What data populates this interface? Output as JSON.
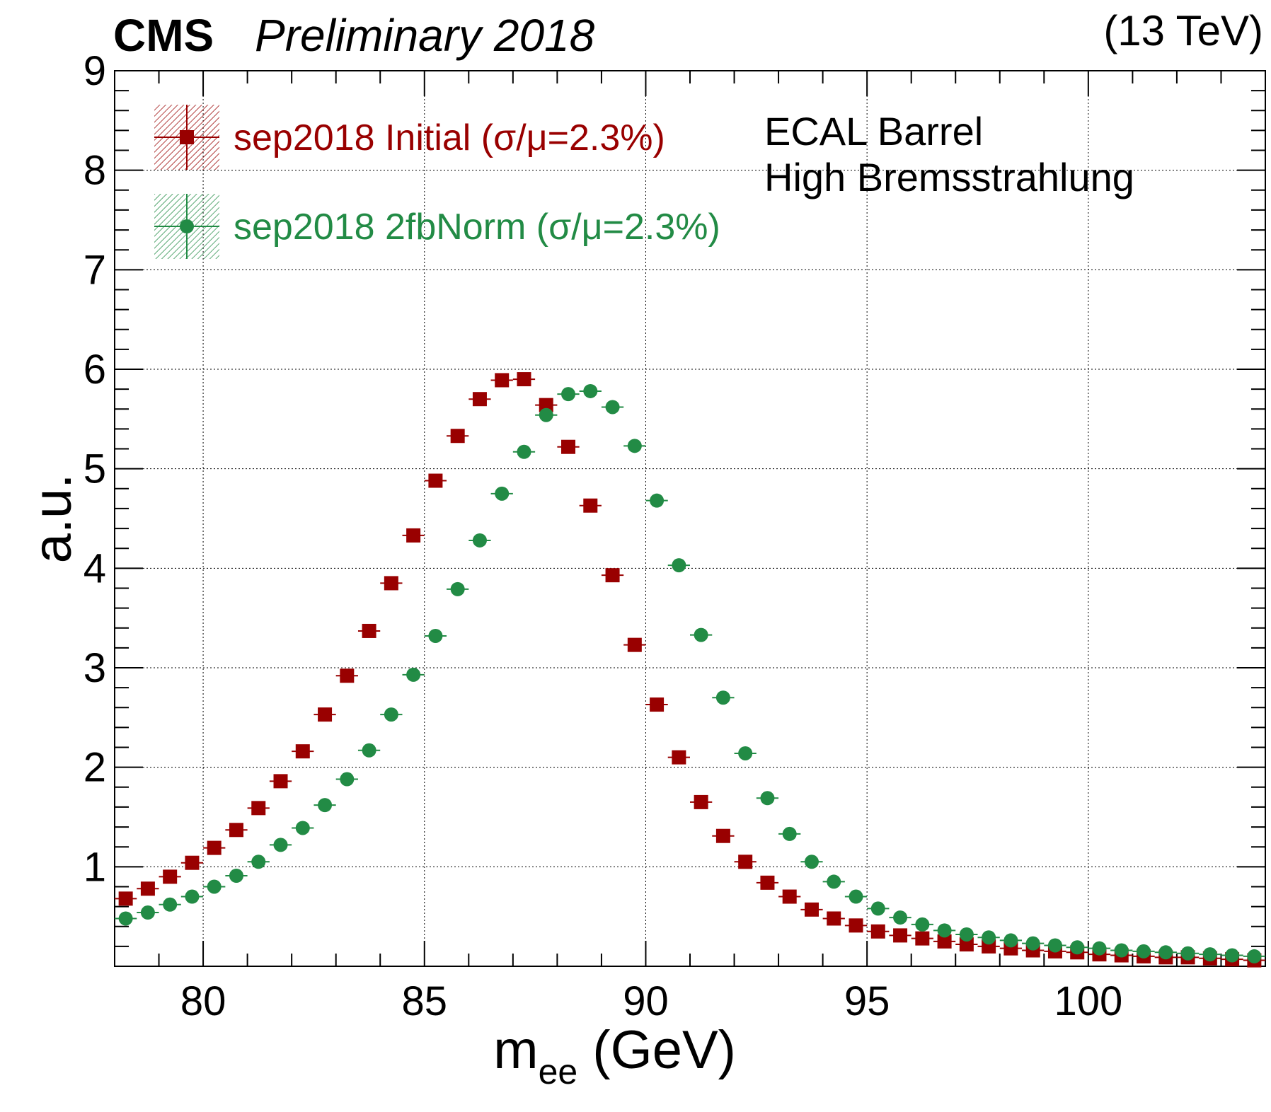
{
  "header": {
    "experiment": "CMS",
    "status": "Preliminary 2018",
    "energy": "(13 TeV)"
  },
  "annotation": {
    "line1": "ECAL Barrel",
    "line2": "High Bremsstrahlung"
  },
  "chart_data": {
    "type": "scatter",
    "xlabel_main": "m",
    "xlabel_sub": "ee",
    "xlabel_unit": " (GeV)",
    "ylabel": "a.u.",
    "xlim": [
      78,
      104
    ],
    "ylim": [
      0,
      9
    ],
    "xticks": [
      80,
      85,
      90,
      95,
      100
    ],
    "yticks": [
      1,
      2,
      3,
      4,
      5,
      6,
      7,
      8,
      9
    ],
    "grid": true,
    "legend_position": "top-left",
    "x": [
      78.25,
      78.75,
      79.25,
      79.75,
      80.25,
      80.75,
      81.25,
      81.75,
      82.25,
      82.75,
      83.25,
      83.75,
      84.25,
      84.75,
      85.25,
      85.75,
      86.25,
      86.75,
      87.25,
      87.75,
      88.25,
      88.75,
      89.25,
      89.75,
      90.25,
      90.75,
      91.25,
      91.75,
      92.25,
      92.75,
      93.25,
      93.75,
      94.25,
      94.75,
      95.25,
      95.75,
      96.25,
      96.75,
      97.25,
      97.75,
      98.25,
      98.75,
      99.25,
      99.75,
      100.25,
      100.75,
      101.25,
      101.75,
      102.25,
      102.75,
      103.25,
      103.75
    ],
    "series": [
      {
        "name": "sep2018 Initial (σ/μ=2.3%)",
        "color": "#990000",
        "marker": "square",
        "values": [
          0.68,
          0.78,
          0.9,
          1.04,
          1.19,
          1.37,
          1.59,
          1.86,
          2.16,
          2.53,
          2.92,
          3.37,
          3.85,
          4.33,
          4.88,
          5.33,
          5.7,
          5.89,
          5.9,
          5.64,
          5.22,
          4.63,
          3.93,
          3.23,
          2.63,
          2.1,
          1.65,
          1.31,
          1.05,
          0.84,
          0.7,
          0.57,
          0.48,
          0.41,
          0.35,
          0.31,
          0.28,
          0.25,
          0.22,
          0.2,
          0.18,
          0.16,
          0.15,
          0.14,
          0.12,
          0.11,
          0.1,
          0.09,
          0.09,
          0.08,
          0.07,
          0.06
        ]
      },
      {
        "name": "sep2018 2fbNorm (σ/μ=2.3%)",
        "color": "#228b45",
        "marker": "circle",
        "values": [
          0.48,
          0.54,
          0.62,
          0.7,
          0.8,
          0.91,
          1.05,
          1.22,
          1.39,
          1.62,
          1.88,
          2.17,
          2.53,
          2.93,
          3.32,
          3.79,
          4.28,
          4.75,
          5.17,
          5.54,
          5.75,
          5.78,
          5.62,
          5.23,
          4.68,
          4.03,
          3.33,
          2.7,
          2.14,
          1.69,
          1.33,
          1.05,
          0.85,
          0.7,
          0.58,
          0.49,
          0.42,
          0.36,
          0.32,
          0.29,
          0.26,
          0.23,
          0.21,
          0.19,
          0.18,
          0.16,
          0.15,
          0.14,
          0.13,
          0.12,
          0.11,
          0.1
        ]
      }
    ]
  }
}
